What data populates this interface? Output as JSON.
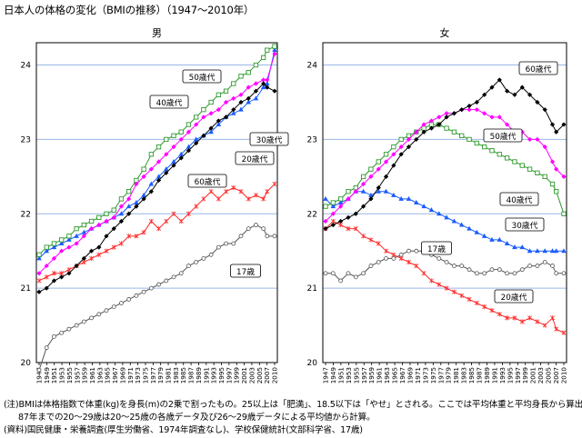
{
  "title": "日本人の体格の変化（BMIの推移）（1947〜2010年）",
  "notes": {
    "note1": "(注)BMIは体格指数で体重(kg)を身長(m)の2乗で割ったもの。25以上は「肥満」、18.5以下は「やせ」とされる。ここでは平均体重と平均身長から算出。",
    "note2": "87年までの20〜29歳は20〜25歳の各歳データ及び26〜29歳データによる平均値から計算。",
    "note3": "(資料)国民健康・栄養調査(厚生労働省、1974年調査なし)、学校保健統計(文部科学省、17歳)"
  },
  "colors": {
    "age17": "#555555",
    "age20s": "#ff2a2a",
    "age30s": "#1a5cff",
    "age40s": "#2e9a2e",
    "age50s": "#ff00ff",
    "age60s": "#000000"
  },
  "chart_data": [
    {
      "type": "line",
      "title": "男",
      "ylim": [
        20,
        24.3
      ],
      "yticks": [
        20,
        21,
        22,
        23,
        24
      ],
      "xlim": [
        1947,
        2010
      ],
      "xtick_labels": [
        "1947",
        "1949",
        "1951",
        "1953",
        "1955",
        "1957",
        "1959",
        "1961",
        "1963",
        "1965",
        "1967",
        "1969",
        "1971",
        "1973",
        "1975",
        "1977",
        "1979",
        "1981",
        "1983",
        "1985",
        "1987",
        "1989",
        "1991",
        "1993",
        "1995",
        "1997",
        "1999",
        "2001",
        "2003",
        "2005",
        "2007",
        "2010"
      ],
      "series": [
        {
          "name": "17歳",
          "label": "17歳",
          "color_key": "age17",
          "marker": "circle",
          "x": [
            1947,
            1949,
            1951,
            1953,
            1955,
            1957,
            1959,
            1961,
            1963,
            1965,
            1967,
            1969,
            1971,
            1973,
            1975,
            1977,
            1979,
            1981,
            1983,
            1985,
            1987,
            1989,
            1991,
            1993,
            1995,
            1997,
            1999,
            2001,
            2003,
            2005,
            2007,
            2008,
            2010
          ],
          "values": [
            19.9,
            20.2,
            20.35,
            20.4,
            20.45,
            20.5,
            20.55,
            20.6,
            20.65,
            20.7,
            20.75,
            20.8,
            20.85,
            20.9,
            20.95,
            21.0,
            21.05,
            21.1,
            21.15,
            21.2,
            21.3,
            21.35,
            21.4,
            21.45,
            21.55,
            21.6,
            21.6,
            21.7,
            21.8,
            21.85,
            21.8,
            21.7,
            21.7
          ]
        },
        {
          "name": "20歳代",
          "label": "20歳代",
          "color_key": "age20s",
          "marker": "asterisk",
          "x": [
            1947,
            1949,
            1951,
            1953,
            1955,
            1957,
            1959,
            1961,
            1963,
            1965,
            1967,
            1969,
            1971,
            1973,
            1975,
            1977,
            1979,
            1981,
            1983,
            1985,
            1987,
            1989,
            1991,
            1993,
            1995,
            1997,
            1999,
            2001,
            2003,
            2005,
            2007,
            2008,
            2010
          ],
          "values": [
            21.1,
            21.15,
            21.2,
            21.2,
            21.25,
            21.3,
            21.35,
            21.4,
            21.45,
            21.5,
            21.55,
            21.6,
            21.7,
            21.7,
            21.75,
            21.9,
            21.8,
            21.9,
            22.0,
            21.9,
            22.0,
            22.1,
            22.2,
            22.3,
            22.2,
            22.3,
            22.35,
            22.3,
            22.2,
            22.25,
            22.2,
            22.3,
            22.4
          ]
        },
        {
          "name": "30歳代",
          "label": "30歳代",
          "color_key": "age30s",
          "marker": "triangle",
          "x": [
            1947,
            1949,
            1951,
            1953,
            1955,
            1957,
            1959,
            1961,
            1963,
            1965,
            1967,
            1969,
            1971,
            1973,
            1975,
            1977,
            1979,
            1981,
            1983,
            1985,
            1987,
            1989,
            1991,
            1993,
            1995,
            1997,
            1999,
            2001,
            2003,
            2005,
            2007,
            2008,
            2010
          ],
          "values": [
            21.4,
            21.5,
            21.55,
            21.6,
            21.65,
            21.7,
            21.75,
            21.8,
            21.85,
            21.9,
            21.95,
            22.0,
            22.1,
            22.15,
            22.25,
            22.4,
            22.5,
            22.6,
            22.7,
            22.8,
            22.9,
            23.0,
            23.05,
            23.1,
            23.2,
            23.3,
            23.35,
            23.4,
            23.5,
            23.55,
            23.7,
            23.75,
            24.2
          ]
        },
        {
          "name": "40歳代",
          "label": "40歳代",
          "color_key": "age40s",
          "marker": "square",
          "x": [
            1947,
            1949,
            1951,
            1953,
            1955,
            1957,
            1959,
            1961,
            1963,
            1965,
            1967,
            1969,
            1971,
            1973,
            1975,
            1977,
            1979,
            1981,
            1983,
            1985,
            1987,
            1989,
            1991,
            1993,
            1995,
            1997,
            1999,
            2001,
            2003,
            2005,
            2007,
            2008,
            2010
          ],
          "values": [
            21.45,
            21.55,
            21.6,
            21.65,
            21.7,
            21.8,
            21.85,
            21.9,
            21.95,
            22.0,
            22.05,
            22.2,
            22.3,
            22.45,
            22.6,
            22.8,
            22.9,
            23.0,
            23.05,
            23.1,
            23.2,
            23.3,
            23.4,
            23.5,
            23.6,
            23.65,
            23.75,
            23.85,
            23.9,
            24.0,
            24.1,
            24.2,
            24.25
          ]
        },
        {
          "name": "50歳代",
          "label": "50歳代",
          "color_key": "age50s",
          "marker": "diamond",
          "x": [
            1947,
            1949,
            1951,
            1953,
            1955,
            1957,
            1959,
            1961,
            1963,
            1965,
            1967,
            1969,
            1971,
            1973,
            1975,
            1977,
            1979,
            1981,
            1983,
            1985,
            1987,
            1989,
            1991,
            1993,
            1995,
            1997,
            1999,
            2001,
            2003,
            2005,
            2007,
            2008,
            2010
          ],
          "values": [
            21.2,
            21.3,
            21.4,
            21.5,
            21.55,
            21.6,
            21.7,
            21.8,
            21.85,
            21.9,
            21.95,
            22.1,
            22.2,
            22.4,
            22.5,
            22.6,
            22.7,
            22.8,
            22.9,
            23.0,
            23.1,
            23.2,
            23.3,
            23.35,
            23.4,
            23.5,
            23.55,
            23.6,
            23.7,
            23.75,
            23.8,
            23.8,
            24.15
          ]
        },
        {
          "name": "60歳代",
          "label": "60歳代",
          "color_key": "age60s",
          "marker": "diamondfill",
          "x": [
            1947,
            1949,
            1951,
            1953,
            1955,
            1957,
            1959,
            1961,
            1963,
            1965,
            1967,
            1969,
            1971,
            1973,
            1975,
            1977,
            1979,
            1981,
            1983,
            1985,
            1987,
            1989,
            1991,
            1993,
            1995,
            1997,
            1999,
            2001,
            2003,
            2005,
            2007,
            2008,
            2010
          ],
          "values": [
            20.95,
            21.0,
            21.1,
            21.15,
            21.2,
            21.3,
            21.4,
            21.5,
            21.55,
            21.7,
            21.8,
            21.9,
            22.0,
            22.1,
            22.2,
            22.3,
            22.45,
            22.55,
            22.65,
            22.75,
            22.85,
            22.95,
            23.05,
            23.15,
            23.25,
            23.3,
            23.4,
            23.5,
            23.55,
            23.65,
            23.75,
            23.7,
            23.65
          ]
        }
      ]
    },
    {
      "type": "line",
      "title": "女",
      "ylim": [
        20,
        24.3
      ],
      "yticks": [
        20,
        21,
        22,
        23,
        24
      ],
      "xlim": [
        1947,
        2010
      ],
      "xtick_labels": [
        "1947",
        "1949",
        "1951",
        "1953",
        "1955",
        "1957",
        "1959",
        "1961",
        "1963",
        "1965",
        "1967",
        "1969",
        "1971",
        "1973",
        "1975",
        "1977",
        "1979",
        "1981",
        "1983",
        "1985",
        "1987",
        "1989",
        "1991",
        "1993",
        "1995",
        "1997",
        "1999",
        "2001",
        "2003",
        "2005",
        "2007",
        "2010"
      ],
      "series": [
        {
          "name": "17歳",
          "label": "17歳",
          "color_key": "age17",
          "marker": "circle",
          "x": [
            1947,
            1949,
            1951,
            1953,
            1955,
            1957,
            1959,
            1961,
            1963,
            1965,
            1967,
            1969,
            1971,
            1973,
            1975,
            1977,
            1979,
            1981,
            1983,
            1985,
            1987,
            1989,
            1991,
            1993,
            1995,
            1997,
            1999,
            2001,
            2003,
            2005,
            2007,
            2008,
            2010
          ],
          "values": [
            21.2,
            21.2,
            21.1,
            21.2,
            21.15,
            21.2,
            21.3,
            21.35,
            21.4,
            21.4,
            21.45,
            21.5,
            21.5,
            21.5,
            21.45,
            21.4,
            21.35,
            21.3,
            21.3,
            21.25,
            21.2,
            21.2,
            21.25,
            21.25,
            21.2,
            21.2,
            21.25,
            21.3,
            21.3,
            21.35,
            21.3,
            21.2,
            21.2
          ]
        },
        {
          "name": "20歳代",
          "label": "20歳代",
          "color_key": "age20s",
          "marker": "asterisk",
          "x": [
            1947,
            1949,
            1951,
            1953,
            1955,
            1957,
            1959,
            1961,
            1963,
            1965,
            1967,
            1969,
            1971,
            1973,
            1975,
            1977,
            1979,
            1981,
            1983,
            1985,
            1987,
            1989,
            1991,
            1993,
            1995,
            1997,
            1999,
            2001,
            2003,
            2005,
            2007,
            2008,
            2010
          ],
          "values": [
            21.8,
            21.9,
            21.85,
            21.8,
            21.8,
            21.7,
            21.65,
            21.6,
            21.5,
            21.45,
            21.4,
            21.35,
            21.3,
            21.2,
            21.1,
            21.05,
            21.0,
            20.95,
            20.9,
            20.85,
            20.8,
            20.75,
            20.7,
            20.65,
            20.6,
            20.6,
            20.55,
            20.6,
            20.55,
            20.5,
            20.6,
            20.45,
            20.4
          ]
        },
        {
          "name": "30歳代",
          "label": "30歳代",
          "color_key": "age30s",
          "marker": "triangle",
          "x": [
            1947,
            1949,
            1951,
            1953,
            1955,
            1957,
            1959,
            1961,
            1963,
            1965,
            1967,
            1969,
            1971,
            1973,
            1975,
            1977,
            1979,
            1981,
            1983,
            1985,
            1987,
            1989,
            1991,
            1993,
            1995,
            1997,
            1999,
            2001,
            2003,
            2005,
            2007,
            2008,
            2010
          ],
          "values": [
            22.2,
            22.1,
            22.15,
            22.2,
            22.3,
            22.3,
            22.25,
            22.3,
            22.3,
            22.25,
            22.2,
            22.2,
            22.15,
            22.1,
            22.05,
            22.0,
            21.95,
            21.9,
            21.85,
            21.8,
            21.75,
            21.7,
            21.65,
            21.65,
            21.6,
            21.55,
            21.55,
            21.5,
            21.5,
            21.5,
            21.5,
            21.5,
            21.5
          ]
        },
        {
          "name": "40歳代",
          "label": "40歳代",
          "color_key": "age40s",
          "marker": "square",
          "x": [
            1947,
            1949,
            1951,
            1953,
            1955,
            1957,
            1959,
            1961,
            1963,
            1965,
            1967,
            1969,
            1971,
            1973,
            1975,
            1977,
            1979,
            1981,
            1983,
            1985,
            1987,
            1989,
            1991,
            1993,
            1995,
            1997,
            1999,
            2001,
            2003,
            2005,
            2007,
            2008,
            2010
          ],
          "values": [
            22.1,
            22.15,
            22.2,
            22.3,
            22.35,
            22.5,
            22.6,
            22.7,
            22.8,
            22.9,
            23.0,
            23.05,
            23.1,
            23.15,
            23.2,
            23.2,
            23.15,
            23.1,
            23.05,
            23.0,
            22.95,
            22.9,
            22.85,
            22.8,
            22.75,
            22.7,
            22.65,
            22.6,
            22.55,
            22.5,
            22.4,
            22.3,
            22.0
          ]
        },
        {
          "name": "50歳代",
          "label": "50歳代",
          "color_key": "age50s",
          "marker": "diamond",
          "x": [
            1947,
            1949,
            1951,
            1953,
            1955,
            1957,
            1959,
            1961,
            1963,
            1965,
            1967,
            1969,
            1971,
            1973,
            1975,
            1977,
            1979,
            1981,
            1983,
            1985,
            1987,
            1989,
            1991,
            1993,
            1995,
            1997,
            1999,
            2001,
            2003,
            2005,
            2007,
            2008,
            2010
          ],
          "values": [
            21.9,
            22.0,
            22.1,
            22.2,
            22.3,
            22.4,
            22.5,
            22.6,
            22.7,
            22.8,
            22.9,
            23.0,
            23.1,
            23.2,
            23.25,
            23.3,
            23.35,
            23.35,
            23.4,
            23.4,
            23.4,
            23.35,
            23.3,
            23.3,
            23.2,
            23.1,
            23.1,
            23.0,
            23.0,
            22.9,
            22.7,
            22.6,
            22.5
          ]
        },
        {
          "name": "60歳代",
          "label": "60歳代",
          "color_key": "age60s",
          "marker": "diamondfill",
          "x": [
            1947,
            1949,
            1951,
            1953,
            1955,
            1957,
            1959,
            1961,
            1963,
            1965,
            1967,
            1969,
            1971,
            1973,
            1975,
            1977,
            1979,
            1981,
            1983,
            1985,
            1987,
            1989,
            1991,
            1993,
            1995,
            1997,
            1999,
            2001,
            2003,
            2005,
            2007,
            2008,
            2010
          ],
          "values": [
            21.8,
            21.85,
            21.9,
            21.95,
            22.0,
            22.1,
            22.2,
            22.35,
            22.5,
            22.65,
            22.8,
            22.9,
            23.0,
            23.1,
            23.15,
            23.2,
            23.3,
            23.35,
            23.4,
            23.45,
            23.5,
            23.6,
            23.7,
            23.8,
            23.65,
            23.6,
            23.7,
            23.6,
            23.5,
            23.4,
            23.2,
            23.1,
            23.2
          ]
        }
      ]
    }
  ]
}
